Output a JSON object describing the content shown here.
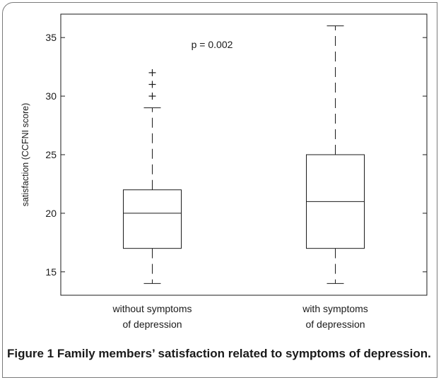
{
  "chart_data": {
    "type": "boxplot",
    "title": "",
    "annotation": "p = 0.002",
    "xlabel": "",
    "ylabel": "satisfaction (CCFNI score)",
    "ylim": [
      13,
      37
    ],
    "yticks": [
      15,
      20,
      25,
      30,
      35
    ],
    "grid": false,
    "categories": [
      [
        "without symptoms",
        "of depression"
      ],
      [
        "with symptoms",
        "of depression"
      ]
    ],
    "boxes": [
      {
        "whisker_low": 14,
        "q1": 17,
        "median": 20,
        "q3": 22,
        "whisker_high": 29,
        "outliers": [
          30,
          31,
          32
        ]
      },
      {
        "whisker_low": 14,
        "q1": 17,
        "median": 21,
        "q3": 25,
        "whisker_high": 36,
        "outliers": []
      }
    ]
  },
  "caption": {
    "label": "Figure 1",
    "text": " Family members’ satisfaction related to symptoms of depression."
  }
}
